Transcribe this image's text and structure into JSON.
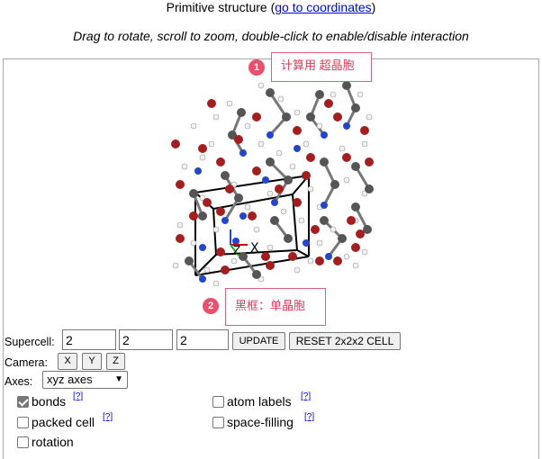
{
  "header": {
    "title_prefix": "Primitive structure (",
    "coord_link": "go to coordinates",
    "title_suffix": ")",
    "hint": "Drag to rotate, scroll to zoom, double-click to enable/disable interaction"
  },
  "annotations": {
    "badge1": "1",
    "callout1": "计算用 超晶胞",
    "badge2": "2",
    "callout2": "黑框：单晶胞"
  },
  "viewer": {
    "axis_x_label": "X",
    "axis_z_label": "Z",
    "atom_colors": {
      "oxygen": "#a31f1f",
      "carbon": "#555555",
      "nitrogen": "#2447c8",
      "hydrogen": "#f2f2f2",
      "cell_edge": "#000000"
    }
  },
  "controls": {
    "supercell_label": "Supercell:",
    "supercell_values": [
      "2",
      "2",
      "2"
    ],
    "update_button": "UPDATE",
    "reset_button": "RESET 2x2x2 CELL",
    "camera_label": "Camera:",
    "camera_buttons": [
      "X",
      "Y",
      "Z"
    ],
    "axes_label": "Axes:",
    "axes_selected": "xyz axes"
  },
  "options": [
    {
      "label": "bonds",
      "checked": true,
      "help": "[?]"
    },
    {
      "label": "atom labels",
      "checked": false,
      "help": "[?]"
    },
    {
      "label": "packed cell",
      "checked": false,
      "help": "[?]"
    },
    {
      "label": "space-filling",
      "checked": false,
      "help": "[?]"
    },
    {
      "label": "rotation",
      "checked": false,
      "help": ""
    }
  ]
}
